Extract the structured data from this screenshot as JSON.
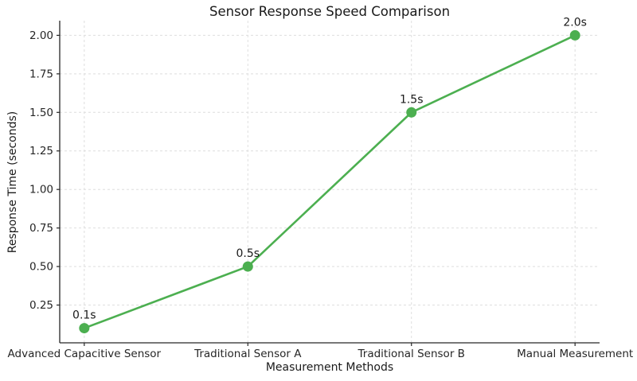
{
  "figure": {
    "title": "Sensor Response Speed Comparison",
    "background": "#ffffff"
  },
  "chart_data": {
    "type": "line",
    "title": "Sensor Response Speed Comparison",
    "xlabel": "Measurement Methods",
    "ylabel": "Response Time (seconds)",
    "categories": [
      "Advanced Capacitive Sensor",
      "Traditional Sensor A",
      "Traditional Sensor B",
      "Manual Measurement"
    ],
    "series": [
      {
        "name": "Response Time",
        "values": [
          0.1,
          0.5,
          1.5,
          2.0
        ]
      }
    ],
    "point_labels": [
      "0.1s",
      "0.5s",
      "1.5s",
      "2.0s"
    ],
    "y_ticks": [
      0.25,
      0.5,
      0.75,
      1.0,
      1.25,
      1.5,
      1.75,
      2.0
    ],
    "y_tick_labels": [
      "0.25",
      "0.50",
      "0.75",
      "1.00",
      "1.25",
      "1.50",
      "1.75",
      "2.00"
    ],
    "ylim": [
      0.005,
      2.095
    ],
    "x_margin": 0.15,
    "grid": true,
    "grid_style": "dashed",
    "legend_position": "none",
    "marker": "circle",
    "colors": {
      "line": "#4caf50",
      "marker": "#4caf50",
      "grid": "#dedede",
      "axis": "#262626",
      "tick_text": "#262626",
      "annotation_text": "#1a1a1a"
    }
  }
}
